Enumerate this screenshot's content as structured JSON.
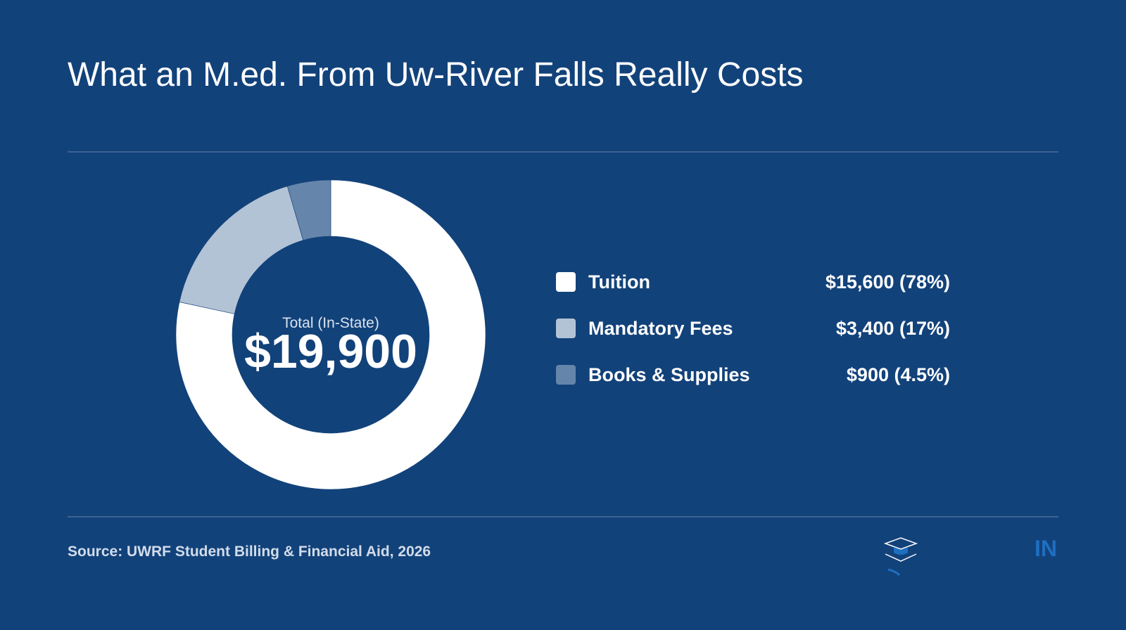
{
  "chart_data": {
    "type": "donut",
    "title": "What an M.ed. From Uw-River Falls Really Costs",
    "categories": [
      "Tuition",
      "Mandatory Fees",
      "Books & Supplies"
    ],
    "values": [
      15600,
      3400,
      900
    ],
    "value_labels": [
      "$15,600 (78%)",
      "$3,400 (17%)",
      "$900 (4.5%)"
    ],
    "colors": [
      "#ffffff",
      "#b3c3d6",
      "#6585aa"
    ],
    "center_label": "Total (In-State)",
    "center_value": "$19,900",
    "source": "Source: UWRF Student Billing & Financial Aid, 2026"
  },
  "logo": {
    "text": "IN"
  }
}
